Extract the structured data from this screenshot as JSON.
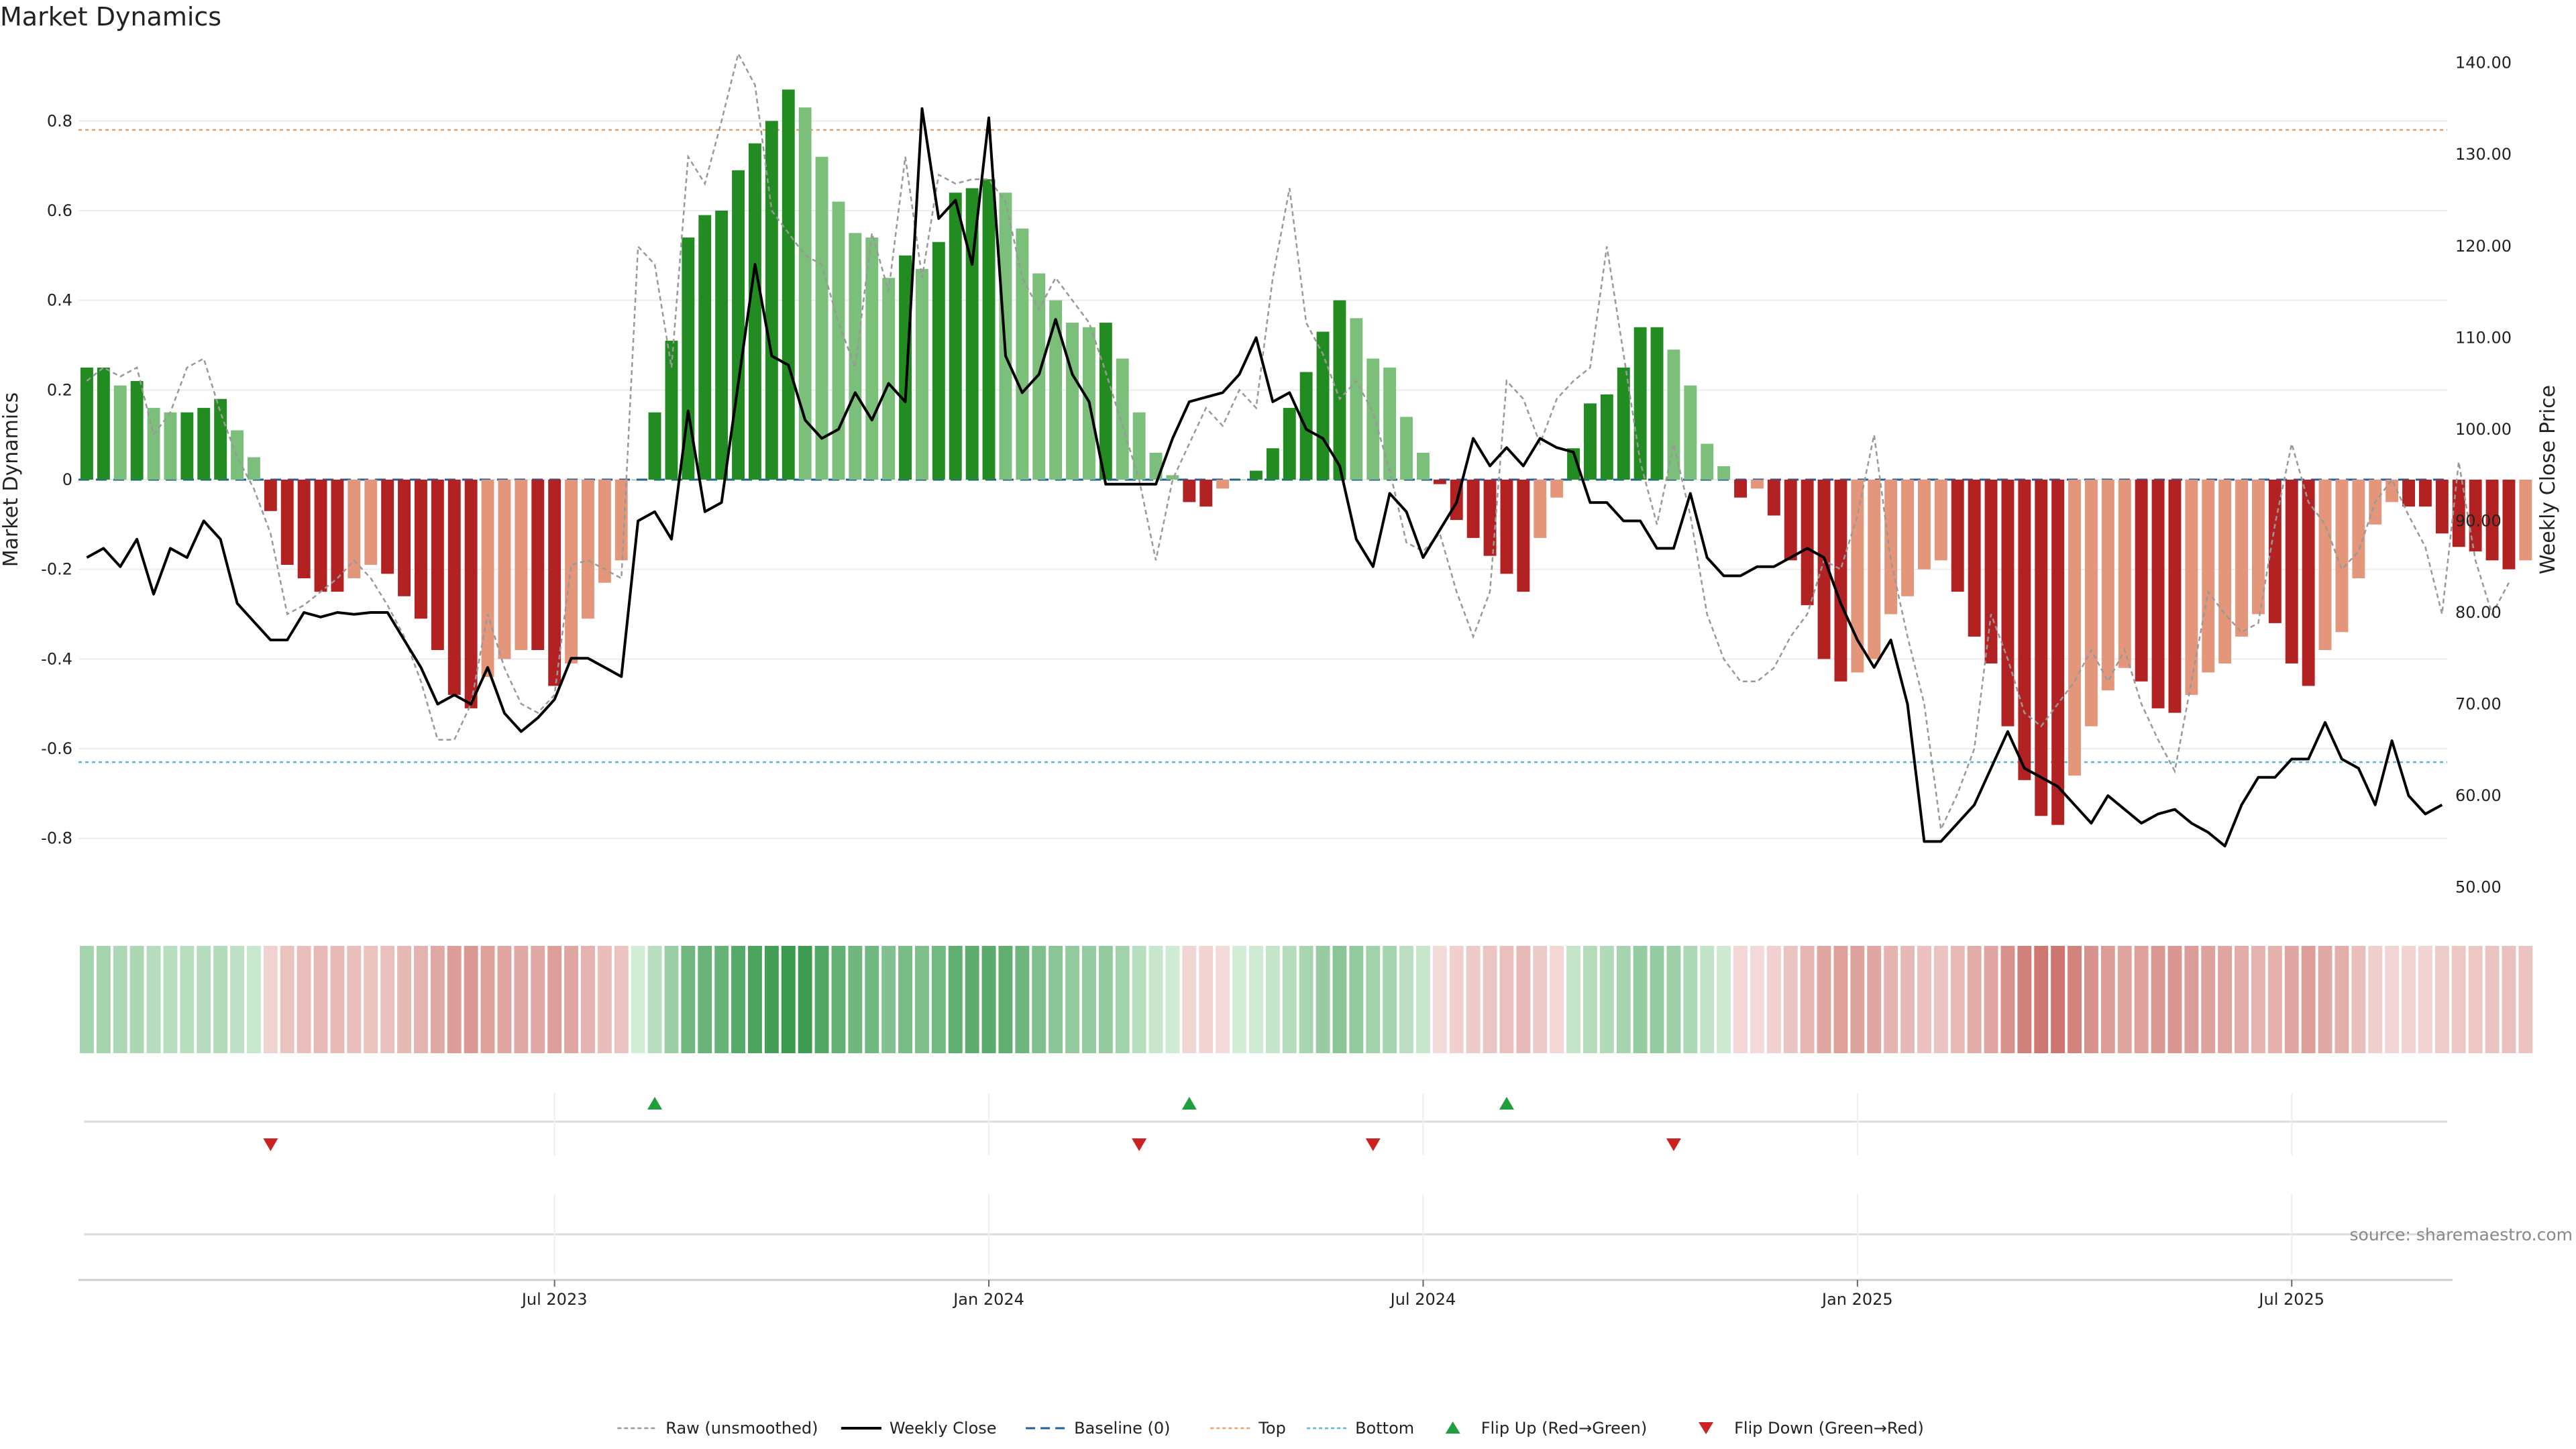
{
  "title": "Market Dynamics",
  "source": "source: sharemaestro.com",
  "colors": {
    "strong_green": "#228b22",
    "light_green": "#7bbf7b",
    "strong_red": "#b22222",
    "light_red": "#e3967a",
    "close_line": "#000000",
    "raw_line": "#999999",
    "baseline": "#1f5f9f",
    "top_line": "#e8a070",
    "bottom_line": "#5bb5d5",
    "flip_up": "#1f9e3f",
    "flip_down": "#cc2222"
  },
  "chart_data": {
    "type": "bar",
    "title": "Market Dynamics",
    "ylabel": "Market Dynamics",
    "y2label": "Weekly Close Price",
    "ylim": [
      -0.95,
      0.95
    ],
    "y2lim": [
      48,
      141
    ],
    "yticks": [
      "-0.8",
      "-0.6",
      "-0.4",
      "-0.2",
      "0",
      "0.2",
      "0.4",
      "0.6",
      "0.8"
    ],
    "y2ticks": [
      "50.00",
      "60.00",
      "70.00",
      "80.00",
      "90.00",
      "100.00",
      "110.00",
      "120.00",
      "130.00",
      "140.00"
    ],
    "xtick_labels": [
      "Jul 2023",
      "Jan 2024",
      "Jul 2024",
      "Jan 2025",
      "Jul 2025"
    ],
    "xtick_weeks": [
      28,
      54,
      80,
      106,
      132
    ],
    "top": 0.78,
    "bottom": -0.63,
    "legend": [
      "Raw (unsmoothed)",
      "Weekly Close",
      "Baseline (0)",
      "Top",
      "Bottom",
      "Flip Up (Red→Green)",
      "Flip Down (Green→Red)"
    ],
    "legend_position": "bottom-center",
    "grid": true,
    "series": [
      {
        "name": "Market Dynamics",
        "values": [
          0.25,
          0.25,
          0.21,
          0.22,
          0.16,
          0.15,
          0.15,
          0.16,
          0.18,
          0.11,
          0.05,
          -0.07,
          -0.19,
          -0.22,
          -0.25,
          -0.25,
          -0.22,
          -0.19,
          -0.21,
          -0.26,
          -0.31,
          -0.38,
          -0.48,
          -0.51,
          -0.44,
          -0.4,
          -0.38,
          -0.38,
          -0.46,
          -0.41,
          -0.31,
          -0.23,
          -0.18,
          0.0,
          0.15,
          0.31,
          0.54,
          0.59,
          0.6,
          0.69,
          0.75,
          0.8,
          0.87,
          0.83,
          0.72,
          0.62,
          0.55,
          0.54,
          0.45,
          0.5,
          0.47,
          0.53,
          0.64,
          0.65,
          0.67,
          0.64,
          0.56,
          0.46,
          0.4,
          0.35,
          0.34,
          0.35,
          0.27,
          0.15,
          0.06,
          0.01,
          -0.05,
          -0.06,
          -0.02,
          0.0,
          0.02,
          0.07,
          0.16,
          0.24,
          0.33,
          0.4,
          0.36,
          0.27,
          0.25,
          0.14,
          0.06,
          -0.01,
          -0.09,
          -0.13,
          -0.17,
          -0.21,
          -0.25,
          -0.13,
          -0.04,
          0.07,
          0.17,
          0.19,
          0.25,
          0.34,
          0.34,
          0.29,
          0.21,
          0.08,
          0.03,
          -0.04,
          -0.02,
          -0.08,
          -0.18,
          -0.28,
          -0.4,
          -0.45,
          -0.43,
          -0.4,
          -0.3,
          -0.26,
          -0.2,
          -0.18,
          -0.25,
          -0.35,
          -0.41,
          -0.55,
          -0.67,
          -0.75,
          -0.77,
          -0.66,
          -0.55,
          -0.47,
          -0.42,
          -0.45,
          -0.51,
          -0.52,
          -0.48,
          -0.43,
          -0.41,
          -0.35,
          -0.3,
          -0.32,
          -0.41,
          -0.46,
          -0.38,
          -0.34,
          -0.22,
          -0.1,
          -0.05,
          -0.06,
          -0.06,
          -0.12,
          -0.15,
          -0.16,
          -0.18,
          -0.2,
          -0.18
        ]
      },
      {
        "name": "Raw (unsmoothed)",
        "values": [
          0.22,
          0.25,
          0.23,
          0.25,
          0.1,
          0.15,
          0.25,
          0.27,
          0.15,
          0.05,
          -0.02,
          -0.12,
          -0.3,
          -0.28,
          -0.25,
          -0.22,
          -0.18,
          -0.22,
          -0.28,
          -0.35,
          -0.45,
          -0.58,
          -0.58,
          -0.5,
          -0.3,
          -0.42,
          -0.5,
          -0.52,
          -0.48,
          -0.19,
          -0.18,
          -0.2,
          -0.22,
          0.52,
          0.48,
          0.25,
          0.72,
          0.66,
          0.8,
          0.95,
          0.88,
          0.6,
          0.55,
          0.5,
          0.48,
          0.35,
          0.25,
          0.55,
          0.42,
          0.72,
          0.45,
          0.68,
          0.66,
          0.67,
          0.67,
          0.62,
          0.45,
          0.38,
          0.45,
          0.4,
          0.35,
          0.24,
          0.12,
          0.0,
          -0.18,
          0.0,
          0.08,
          0.16,
          0.12,
          0.2,
          0.16,
          0.45,
          0.65,
          0.35,
          0.28,
          0.18,
          0.22,
          0.15,
          0.02,
          -0.14,
          -0.16,
          -0.12,
          -0.25,
          -0.35,
          -0.25,
          0.22,
          0.18,
          0.08,
          0.18,
          0.22,
          0.25,
          0.52,
          0.28,
          0.04,
          -0.1,
          0.08,
          -0.08,
          -0.3,
          -0.4,
          -0.45,
          -0.45,
          -0.42,
          -0.35,
          -0.3,
          -0.18,
          -0.2,
          -0.08,
          0.1,
          -0.18,
          -0.35,
          -0.5,
          -0.78,
          -0.7,
          -0.6,
          -0.3,
          -0.4,
          -0.52,
          -0.55,
          -0.5,
          -0.45,
          -0.38,
          -0.45,
          -0.38,
          -0.5,
          -0.58,
          -0.65,
          -0.45,
          -0.25,
          -0.3,
          -0.34,
          -0.32,
          -0.1,
          0.08,
          -0.05,
          -0.1,
          -0.2,
          -0.16,
          -0.05,
          0.0,
          -0.08,
          -0.15,
          -0.3,
          0.04,
          -0.18,
          -0.3,
          -0.23
        ]
      },
      {
        "name": "Weekly Close",
        "values": [
          86.0,
          87.0,
          85.0,
          88.0,
          82.0,
          87.0,
          86.0,
          90.0,
          88.0,
          81.0,
          79.0,
          77.0,
          77.0,
          80.0,
          79.5,
          80.0,
          79.8,
          80.0,
          80.0,
          77.0,
          74.0,
          70.0,
          71.0,
          70.0,
          74.0,
          69.0,
          67.0,
          68.5,
          70.5,
          75.0,
          75.0,
          74.0,
          73.0,
          90.0,
          91.0,
          88.0,
          102.0,
          91.0,
          92.0,
          105.0,
          118.0,
          108.0,
          107.0,
          101.0,
          99.0,
          100.0,
          104.0,
          101.0,
          105.0,
          103.0,
          135.0,
          123.0,
          125.0,
          118.0,
          134.0,
          108.0,
          104.0,
          106.0,
          112.0,
          106.0,
          103.0,
          94.0,
          94.0,
          94.0,
          94.0,
          99.0,
          103.0,
          103.5,
          104.0,
          106.0,
          110.0,
          103.0,
          104.0,
          100.0,
          99.0,
          96.0,
          88.0,
          85.0,
          93.0,
          91.0,
          86.0,
          89.0,
          92.0,
          99.0,
          96.0,
          98.0,
          96.0,
          99.0,
          98.0,
          97.5,
          92.0,
          92.0,
          90.0,
          90.0,
          87.0,
          87.0,
          93.0,
          86.0,
          84.0,
          84.0,
          85.0,
          85.0,
          86.0,
          87.0,
          86.0,
          81.0,
          77.0,
          74.0,
          77.0,
          70.0,
          55.0,
          55.0,
          57.0,
          59.0,
          63.0,
          67.0,
          63.0,
          62.0,
          61.0,
          59.0,
          57.0,
          60.0,
          58.5,
          57.0,
          58.0,
          58.5,
          57.0,
          56.0,
          54.5,
          59.0,
          62.0,
          62.0,
          64.0,
          64.0,
          68.0,
          64.0,
          63.0,
          59.0,
          66.0,
          60.0,
          58.0,
          59.0
        ]
      }
    ],
    "flip_up_weeks": [
      34,
      66,
      85
    ],
    "flip_down_weeks": [
      11,
      63,
      77,
      95
    ]
  }
}
